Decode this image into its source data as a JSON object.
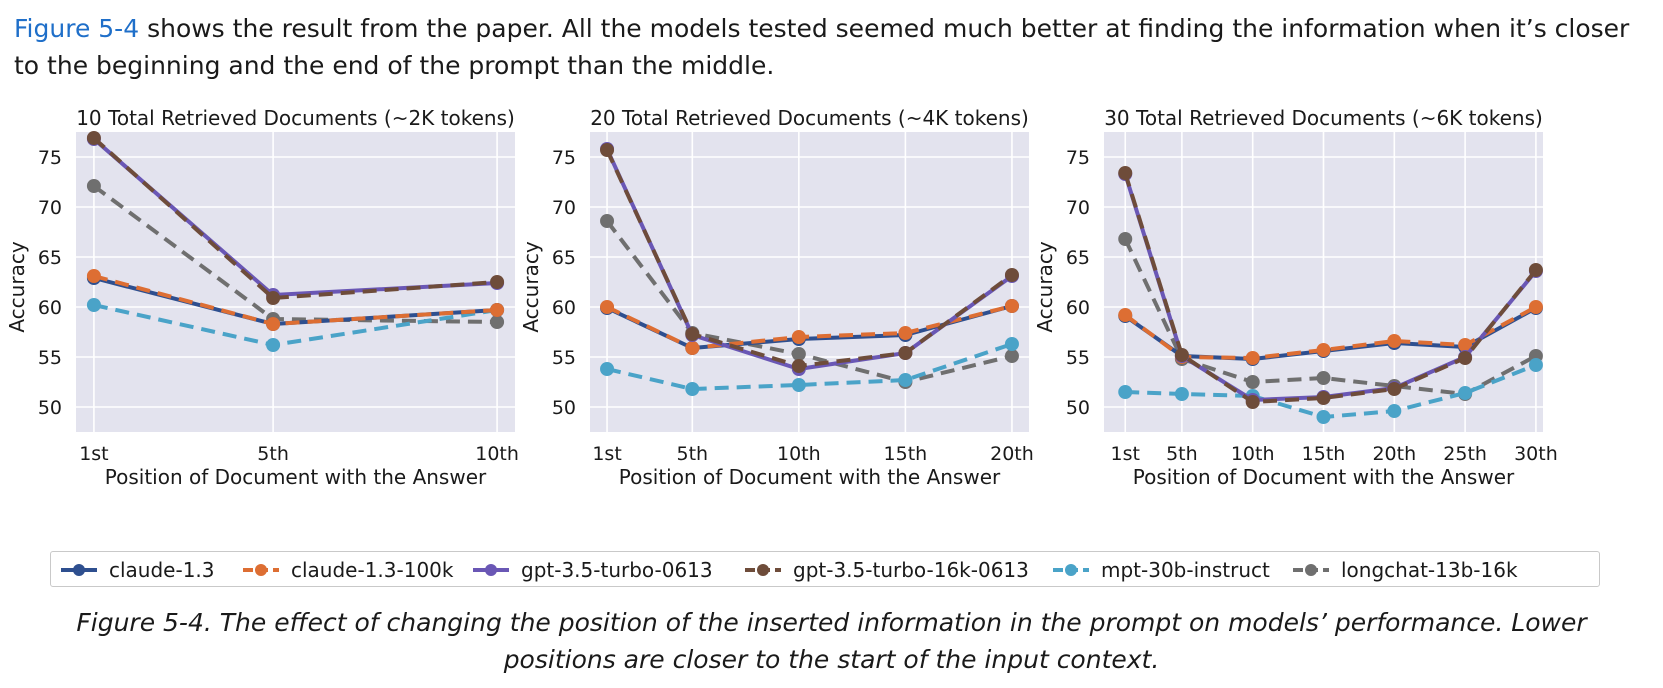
{
  "intro": {
    "ref": "Figure 5-4",
    "text": " shows the result from the paper. All the models tested seemed much better at finding the information when it’s closer to the beginning and the end of the prompt than the middle."
  },
  "caption": "Figure 5-4. The effect of changing the position of the inserted information in the prompt on models’ performance. Lower positions are closer to the start of the input context.",
  "series_colors": {
    "claude-1.3": "#2e4f8f",
    "claude-1.3-100k": "#dd6e33",
    "gpt-3.5-turbo-0613": "#6a57b5",
    "gpt-3.5-turbo-16k-0613": "#6e4c3a",
    "mpt-30b-instruct": "#4aa3c8",
    "longchat-13b-16k": "#6f6f6f"
  },
  "dashed_series": [
    "claude-1.3-100k",
    "gpt-3.5-turbo-16k-0613",
    "mpt-30b-instruct",
    "longchat-13b-16k"
  ],
  "legend": [
    "claude-1.3",
    "claude-1.3-100k",
    "gpt-3.5-turbo-0613",
    "gpt-3.5-turbo-16k-0613",
    "mpt-30b-instruct",
    "longchat-13b-16k"
  ],
  "chart_data": [
    {
      "type": "line",
      "title": "10 Total Retrieved Documents (~2K tokens)",
      "xlabel": "Position of Document with the Answer",
      "ylabel": "Accuracy",
      "x": [
        1,
        5,
        10
      ],
      "xticklabels": [
        "1st",
        "5th",
        "10th"
      ],
      "xlim": [
        0.6,
        10.4
      ],
      "ylim": [
        47.5,
        77.5
      ],
      "yticks": [
        50,
        55,
        60,
        65,
        70,
        75
      ],
      "grid": true,
      "series": [
        {
          "name": "claude-1.3",
          "values": [
            62.9,
            58.3,
            59.7
          ]
        },
        {
          "name": "claude-1.3-100k",
          "values": [
            63.1,
            58.3,
            59.7
          ]
        },
        {
          "name": "gpt-3.5-turbo-0613",
          "values": [
            76.8,
            61.2,
            62.4
          ]
        },
        {
          "name": "gpt-3.5-turbo-16k-0613",
          "values": [
            76.9,
            60.9,
            62.5
          ]
        },
        {
          "name": "mpt-30b-instruct",
          "values": [
            60.2,
            56.2,
            59.7
          ]
        },
        {
          "name": "longchat-13b-16k",
          "values": [
            72.1,
            58.8,
            58.5
          ]
        }
      ]
    },
    {
      "type": "line",
      "title": "20 Total Retrieved Documents (~4K tokens)",
      "xlabel": "Position of Document with the Answer",
      "ylabel": "Accuracy",
      "x": [
        1,
        5,
        10,
        15,
        20
      ],
      "xticklabels": [
        "1st",
        "5th",
        "10th",
        "15th",
        "20th"
      ],
      "xlim": [
        0.2,
        20.8
      ],
      "ylim": [
        47.5,
        77.5
      ],
      "yticks": [
        50,
        55,
        60,
        65,
        70,
        75
      ],
      "grid": true,
      "series": [
        {
          "name": "claude-1.3",
          "values": [
            59.9,
            55.9,
            56.8,
            57.2,
            60.1
          ]
        },
        {
          "name": "claude-1.3-100k",
          "values": [
            60.0,
            55.9,
            57.0,
            57.4,
            60.1
          ]
        },
        {
          "name": "gpt-3.5-turbo-0613",
          "values": [
            75.8,
            57.2,
            53.8,
            55.4,
            63.1
          ]
        },
        {
          "name": "gpt-3.5-turbo-16k-0613",
          "values": [
            75.7,
            57.3,
            54.1,
            55.4,
            63.2
          ]
        },
        {
          "name": "mpt-30b-instruct",
          "values": [
            53.8,
            51.8,
            52.2,
            52.7,
            56.3
          ]
        },
        {
          "name": "longchat-13b-16k",
          "values": [
            68.6,
            57.4,
            55.3,
            52.5,
            55.1
          ]
        }
      ]
    },
    {
      "type": "line",
      "title": "30 Total Retrieved Documents (~6K tokens)",
      "xlabel": "Position of Document with the Answer",
      "ylabel": "Accuracy",
      "x": [
        1,
        5,
        10,
        15,
        20,
        25,
        30
      ],
      "xticklabels": [
        "1st",
        "5th",
        "10th",
        "15th",
        "20th",
        "25th",
        "30th"
      ],
      "xlim": [
        -0.5,
        30.5
      ],
      "ylim": [
        47.5,
        77.5
      ],
      "yticks": [
        50,
        55,
        60,
        65,
        70,
        75
      ],
      "grid": true,
      "series": [
        {
          "name": "claude-1.3",
          "values": [
            59.1,
            55.1,
            54.8,
            55.6,
            56.4,
            56.0,
            59.9
          ]
        },
        {
          "name": "claude-1.3-100k",
          "values": [
            59.2,
            55.0,
            54.9,
            55.7,
            56.6,
            56.2,
            60.0
          ]
        },
        {
          "name": "gpt-3.5-turbo-0613",
          "values": [
            73.3,
            55.1,
            50.7,
            51.0,
            51.9,
            55.0,
            63.6
          ]
        },
        {
          "name": "gpt-3.5-turbo-16k-0613",
          "values": [
            73.4,
            55.2,
            50.5,
            50.9,
            51.8,
            54.9,
            63.7
          ]
        },
        {
          "name": "mpt-30b-instruct",
          "values": [
            51.5,
            51.3,
            51.1,
            49.0,
            49.6,
            51.4,
            54.2
          ]
        },
        {
          "name": "longchat-13b-16k",
          "values": [
            66.8,
            54.8,
            52.5,
            52.9,
            52.1,
            51.3,
            55.1
          ]
        }
      ]
    }
  ]
}
